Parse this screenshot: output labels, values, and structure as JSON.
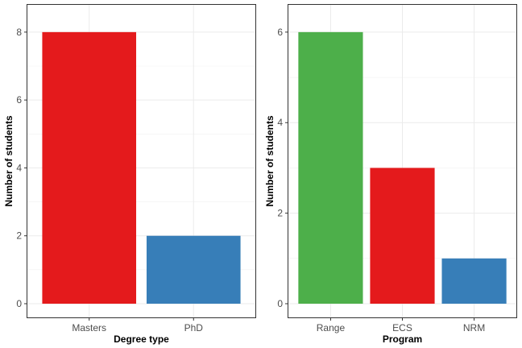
{
  "chart_data": [
    {
      "type": "bar",
      "categories": [
        "Masters",
        "PhD"
      ],
      "values": [
        8,
        2
      ],
      "colors": [
        "#E41A1C",
        "#377EB8"
      ],
      "xlabel": "Degree type",
      "ylabel": "Number of students",
      "ylim": [
        0,
        8.4
      ],
      "yticks": [
        0,
        2,
        4,
        6,
        8
      ],
      "grid": true
    },
    {
      "type": "bar",
      "categories": [
        "Range",
        "ECS",
        "NRM"
      ],
      "values": [
        6,
        3,
        1
      ],
      "colors": [
        "#4DAF4A",
        "#E41A1C",
        "#377EB8"
      ],
      "xlabel": "Program",
      "ylabel": "Number of students",
      "ylim": [
        0,
        6.3
      ],
      "yticks": [
        0,
        2,
        4,
        6
      ],
      "grid": true
    }
  ]
}
